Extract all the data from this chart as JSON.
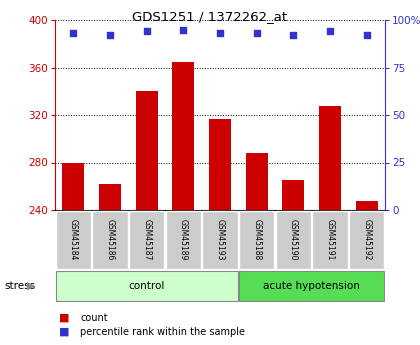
{
  "title": "GDS1251 / 1372262_at",
  "samples": [
    "GSM45184",
    "GSM45186",
    "GSM45187",
    "GSM45189",
    "GSM45193",
    "GSM45188",
    "GSM45190",
    "GSM45191",
    "GSM45192"
  ],
  "counts": [
    280,
    262,
    340,
    365,
    317,
    288,
    265,
    328,
    248
  ],
  "percentiles": [
    93,
    92,
    94,
    95,
    93,
    93,
    92,
    94,
    92
  ],
  "ylim_left": [
    240,
    400
  ],
  "ylim_right": [
    0,
    100
  ],
  "yticks_left": [
    240,
    280,
    320,
    360,
    400
  ],
  "yticks_right": [
    0,
    25,
    50,
    75,
    100
  ],
  "bar_color": "#cc0000",
  "dot_color": "#3333cc",
  "control_color": "#ccffcc",
  "acute_color": "#55dd55",
  "groups": [
    {
      "label": "control",
      "indices": [
        0,
        1,
        2,
        3,
        4
      ],
      "color": "#ccffcc"
    },
    {
      "label": "acute hypotension",
      "indices": [
        5,
        6,
        7,
        8
      ],
      "color": "#55dd55"
    }
  ],
  "stress_label": "stress",
  "legend_count_label": "count",
  "legend_pct_label": "percentile rank within the sample",
  "bg_color": "#ffffff",
  "grid_color": "#000000",
  "label_bg_color": "#cccccc"
}
